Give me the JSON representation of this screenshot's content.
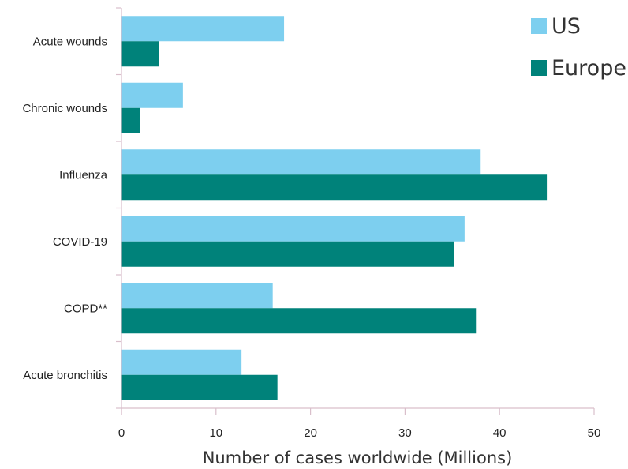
{
  "chart_data": {
    "type": "bar",
    "orientation": "horizontal",
    "categories": [
      "Acute wounds",
      "Chronic wounds",
      "Influenza",
      "COVID-19",
      "COPD**",
      "Acute bronchitis"
    ],
    "series": [
      {
        "name": "US",
        "color": "#7dcfef",
        "values": [
          17.2,
          6.5,
          38.0,
          36.3,
          16.0,
          12.7
        ]
      },
      {
        "name": "Europe",
        "color": "#00827a",
        "values": [
          4.0,
          2.0,
          45.0,
          35.2,
          37.5,
          16.5
        ]
      }
    ],
    "xlabel": "Number of cases worldwide (Millions)",
    "ylabel": "",
    "xlim": [
      0,
      50
    ],
    "xticks": [
      0,
      10,
      20,
      30,
      40,
      50
    ],
    "grid": false,
    "legend_position": "top-right",
    "axis_color": "#d9bfcb"
  }
}
